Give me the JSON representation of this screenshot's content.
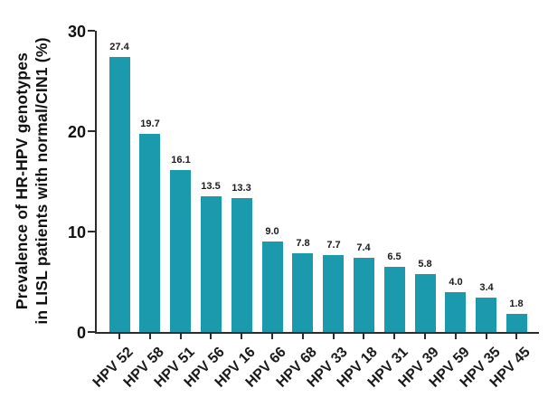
{
  "chart_data": {
    "type": "bar",
    "title": "",
    "xlabel": "",
    "ylabel": "Prevalence of HR-HPV genotypes in LISL patients with normal/CIN1 (%)",
    "ylabel_line1": "Prevalence of HR-HPV genotypes",
    "ylabel_line2": "in LISL patients with normal/CIN1 (%)",
    "categories": [
      "HPV 52",
      "HPV 58",
      "HPV 51",
      "HPV 56",
      "HPV 16",
      "HPV 66",
      "HPV 68",
      "HPV 33",
      "HPV 18",
      "HPV 31",
      "HPV 39",
      "HPV 59",
      "HPV 35",
      "HPV 45"
    ],
    "values": [
      27.4,
      19.7,
      16.1,
      13.5,
      13.3,
      9.0,
      7.8,
      7.7,
      7.4,
      6.5,
      5.8,
      4.0,
      3.4,
      1.8
    ],
    "value_labels": [
      "27.4",
      "19.7",
      "16.1",
      "13.5",
      "13.3",
      "9.0",
      "7.8",
      "7.7",
      "7.4",
      "6.5",
      "5.8",
      "4.0",
      "3.4",
      "1.8"
    ],
    "ylim": [
      0,
      30
    ],
    "yticks": [
      0,
      10,
      20,
      30
    ],
    "grid": false,
    "legend": "none",
    "bar_color": "#1B9AAD",
    "axis_color": "#2B2B2B",
    "text_color": "#111111",
    "background_color": "#FFFFFF"
  }
}
